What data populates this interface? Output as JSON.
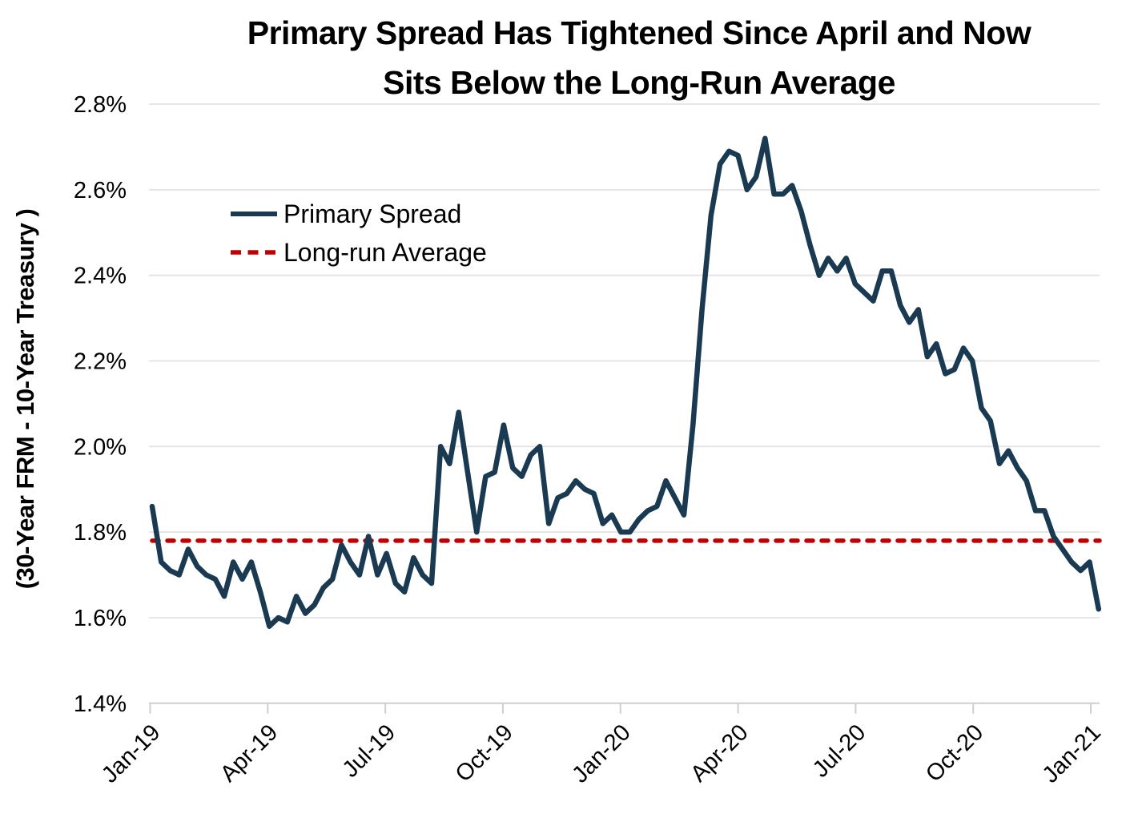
{
  "chart_data": {
    "type": "line",
    "title_lines": [
      "Primary Spread Has Tightened Since April and Now",
      "Sits Below the Long-Run Average"
    ],
    "ylabel": "(30-Year FRM - 10-Year Treasury )",
    "x": {
      "start_date": "2019-01-03",
      "step_days": 7,
      "n_points": 106
    },
    "x_ticks": {
      "labels": [
        "Jan-19",
        "Apr-19",
        "Jul-19",
        "Oct-19",
        "Jan-20",
        "Apr-20",
        "Jul-20",
        "Oct-20",
        "Jan-21"
      ],
      "month_offsets": [
        0,
        3,
        6,
        9,
        12,
        15,
        18,
        21,
        24
      ]
    },
    "y_ticks": [
      1.4,
      1.6,
      1.8,
      2.0,
      2.2,
      2.4,
      2.6,
      2.8
    ],
    "y_tick_suffix": "%",
    "ylim": [
      1.4,
      2.8
    ],
    "grid": {
      "horizontal": true,
      "color": "#e3e3e3"
    },
    "axis_color": "#cfcfcf",
    "text_color": "#000000",
    "series": [
      {
        "name": "Primary Spread",
        "style": "solid",
        "color": "#1a3a52",
        "values": [
          1.86,
          1.73,
          1.71,
          1.7,
          1.76,
          1.72,
          1.7,
          1.69,
          1.65,
          1.73,
          1.69,
          1.73,
          1.66,
          1.58,
          1.6,
          1.59,
          1.65,
          1.61,
          1.63,
          1.67,
          1.69,
          1.77,
          1.73,
          1.7,
          1.79,
          1.7,
          1.75,
          1.68,
          1.66,
          1.74,
          1.7,
          1.68,
          2.0,
          1.96,
          2.08,
          1.94,
          1.8,
          1.93,
          1.94,
          2.05,
          1.95,
          1.93,
          1.98,
          2.0,
          1.82,
          1.88,
          1.89,
          1.92,
          1.9,
          1.89,
          1.82,
          1.84,
          1.8,
          1.8,
          1.83,
          1.85,
          1.86,
          1.92,
          1.88,
          1.84,
          2.05,
          2.32,
          2.54,
          2.66,
          2.69,
          2.68,
          2.6,
          2.63,
          2.72,
          2.59,
          2.59,
          2.61,
          2.55,
          2.47,
          2.4,
          2.44,
          2.41,
          2.44,
          2.38,
          2.36,
          2.34,
          2.41,
          2.41,
          2.33,
          2.29,
          2.32,
          2.21,
          2.24,
          2.17,
          2.18,
          2.23,
          2.2,
          2.09,
          2.06,
          1.96,
          1.99,
          1.95,
          1.92,
          1.85,
          1.85,
          1.79,
          1.76,
          1.73,
          1.71,
          1.73,
          1.62
        ]
      },
      {
        "name": "Long-run Average",
        "style": "dashed",
        "color": "#bf0000",
        "value": 1.78
      }
    ]
  }
}
